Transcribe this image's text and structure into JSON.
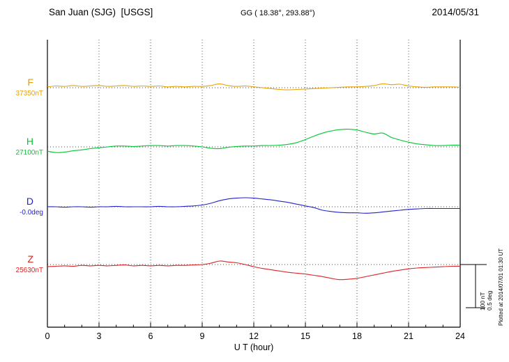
{
  "header": {
    "title": "San Juan (SJG)  [USGS]",
    "coords": "GG ( 18.38°, 293.88°)",
    "date": "2014/05/31"
  },
  "side_note": "Plotted at 2014/07/01 01:30 UT",
  "scale_bar": {
    "nt_label": "100 nT",
    "deg_label": "0.5 deg"
  },
  "chart_data": {
    "type": "line",
    "title": "San Juan (SJG) [USGS] magnetogram 2014/05/31",
    "xlabel": "U T (hour)",
    "ylabel": "",
    "xlim": [
      0,
      24
    ],
    "xticks": [
      0,
      3,
      6,
      9,
      12,
      15,
      18,
      21,
      24
    ],
    "x_step_hours": 0.5,
    "grid": "dotted",
    "scale": {
      "nT_per_div": 100,
      "deg_per_div": 0.5
    },
    "series": [
      {
        "name": "F",
        "label": "F",
        "baseline_label": "37350nT",
        "baseline_value": 37350,
        "units": "nT",
        "color": "#e8a000",
        "offsets": [
          2,
          4,
          3,
          5,
          3,
          4,
          5,
          3,
          4,
          5,
          3,
          4,
          3,
          4,
          2,
          3,
          2,
          3,
          3,
          5,
          9,
          5,
          3,
          4,
          2,
          0,
          -2,
          -4,
          -5,
          -4,
          -3,
          -2,
          -1,
          0,
          1,
          2,
          2,
          3,
          5,
          9,
          7,
          8,
          4,
          2,
          1,
          2,
          2,
          2,
          1
        ]
      },
      {
        "name": "H",
        "label": "H",
        "baseline_label": "27100nT",
        "baseline_value": 27100,
        "units": "nT",
        "color": "#00c832",
        "offsets": [
          -10,
          -13,
          -12,
          -9,
          -7,
          -4,
          -2,
          0,
          2,
          2,
          1,
          2,
          3,
          3,
          2,
          3,
          3,
          2,
          0,
          -3,
          -4,
          -1,
          1,
          2,
          2,
          3,
          3,
          4,
          6,
          10,
          17,
          25,
          32,
          37,
          40,
          41,
          39,
          34,
          30,
          32,
          22,
          16,
          11,
          7,
          5,
          3,
          3,
          4,
          4
        ]
      },
      {
        "name": "D",
        "label": "D",
        "baseline_label": "-0.0deg",
        "baseline_value": 0,
        "units": "deg",
        "color": "#2222cc",
        "offsets": [
          0,
          0,
          -0.005,
          0,
          0,
          -0.005,
          0,
          0,
          0.005,
          0,
          0,
          0,
          0,
          0.005,
          0,
          0,
          0.005,
          0.01,
          0.02,
          0.04,
          0.07,
          0.09,
          0.1,
          0.105,
          0.1,
          0.09,
          0.08,
          0.065,
          0.05,
          0.03,
          0.01,
          -0.01,
          -0.04,
          -0.055,
          -0.065,
          -0.07,
          -0.07,
          -0.075,
          -0.07,
          -0.06,
          -0.05,
          -0.04,
          -0.03,
          -0.025,
          -0.02,
          -0.02,
          -0.02,
          -0.02,
          -0.02
        ]
      },
      {
        "name": "Z",
        "label": "Z",
        "baseline_label": "25630nT",
        "baseline_value": 25630,
        "units": "nT",
        "color": "#dd2222",
        "offsets": [
          -5,
          -4,
          -3,
          -4,
          -2,
          -3,
          -2,
          -3,
          -2,
          -1,
          -3,
          -2,
          -3,
          -2,
          -3,
          -2,
          -2,
          -1,
          0,
          3,
          8,
          6,
          4,
          0,
          -5,
          -9,
          -12,
          -15,
          -18,
          -20,
          -22,
          -25,
          -28,
          -32,
          -35,
          -34,
          -32,
          -28,
          -24,
          -20,
          -16,
          -13,
          -10,
          -8,
          -7,
          -6,
          -5,
          -4,
          -4
        ]
      }
    ]
  }
}
